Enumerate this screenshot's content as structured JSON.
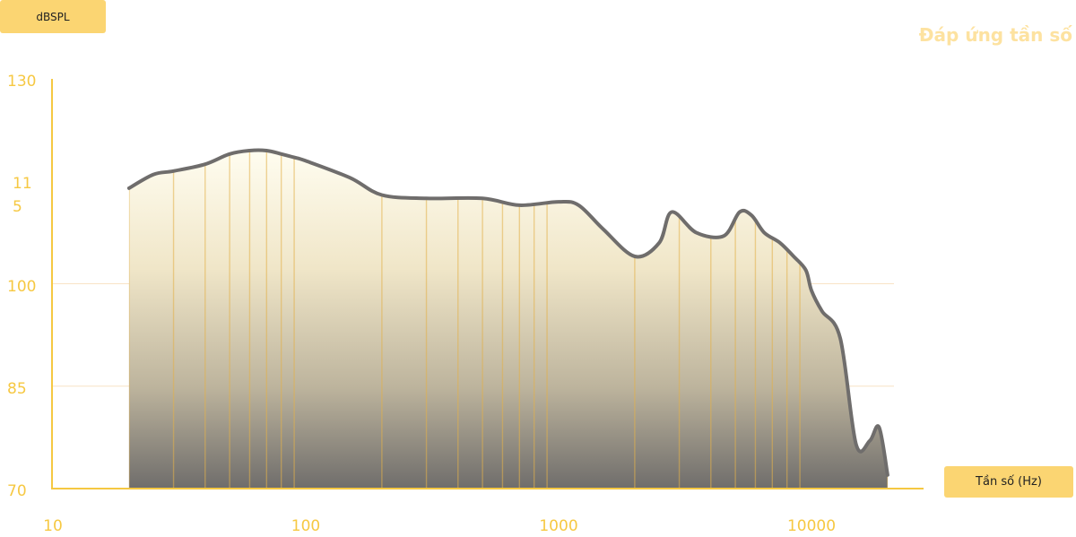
{
  "chart_data": {
    "type": "area",
    "title": "Đáp ứng tần số",
    "ylabel": "dBSPL",
    "xlabel": "Tần số (Hz)",
    "x_scale": "log",
    "xlim": [
      10,
      30000
    ],
    "ylim": [
      70,
      130
    ],
    "y_ticks": [
      "130",
      "115",
      "100",
      "85",
      "70"
    ],
    "x_ticks": [
      "10",
      "100",
      "1000",
      "10000"
    ],
    "grid_y": [
      100,
      85
    ],
    "series": [
      {
        "x": [
          20,
          25,
          30,
          40,
          50,
          60,
          70,
          80,
          90,
          100,
          150,
          200,
          300,
          500,
          700,
          1000,
          1200,
          1500,
          2000,
          2500,
          2800,
          3500,
          4500,
          5200,
          5800,
          6500,
          7500,
          8500,
          9500,
          10000,
          11000,
          13000,
          15000,
          17000,
          18500,
          20000
        ],
        "y": [
          114,
          116,
          116.5,
          117.5,
          119,
          119.5,
          119.5,
          119,
          118.5,
          118,
          115.5,
          113,
          112.5,
          112.5,
          111.5,
          112,
          111.5,
          108,
          104,
          106,
          110.5,
          107.5,
          107,
          110.5,
          110,
          107.5,
          106,
          104,
          102,
          99,
          96,
          92,
          76.5,
          77,
          79,
          72
        ]
      }
    ]
  }
}
